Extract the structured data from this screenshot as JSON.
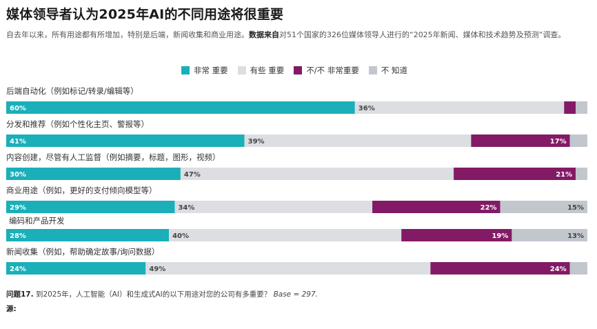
{
  "title": "媒体领导者认为2025年AI的不同用途将很重要",
  "subtitle": {
    "text1": "自去年以来，所有用途都有所增加，特别是后端，新闻收集和商业用途。",
    "bold": "数据来自",
    "text2": "对51个国家的326位媒体领导人进行的“2025年新闻、媒体和技术趋势及预测”调查。"
  },
  "footnote": {
    "q": "问题17.",
    "text": " 到2025年，人工智能（AI）和生成式AI的以下用途对您的公司有多重要？",
    "base": " Base = 297."
  },
  "source_label": "源:",
  "colors": {
    "very": "#1aafb9",
    "some": "#dcdee2",
    "not": "#831a66",
    "dontknow": "#c2c6cd"
  },
  "chart_data": {
    "type": "bar",
    "orientation": "horizontal-stacked-100",
    "legend_position": "top",
    "series": [
      {
        "name": "非常 重要",
        "values": [
          60,
          41,
          30,
          29,
          28,
          24
        ]
      },
      {
        "name": "有些 重要",
        "values": [
          36,
          39,
          47,
          34,
          40,
          49
        ]
      },
      {
        "name": "不/不 非常重要",
        "values": [
          2,
          17,
          21,
          22,
          19,
          24
        ]
      },
      {
        "name": "不 知道",
        "values": [
          2,
          3,
          2,
          15,
          13,
          3
        ]
      }
    ],
    "categories": [
      "后端自动化（例如标记/转录/编辑等）",
      "分发和推荐（例如个性化主页、警报等）",
      "内容创建，尽管有人工监督（例如摘要，标题，图形，视频）",
      "商业用途（例如，更好的支付倾向模型等）",
      "编码和产品开发",
      "新闻收集（例如，帮助确定故事/询问数据）"
    ],
    "labels": [
      [
        "60%",
        "36%",
        "",
        ""
      ],
      [
        "41%",
        "39%",
        "17%",
        ""
      ],
      [
        "30%",
        "47%",
        "21%",
        ""
      ],
      [
        "29%",
        "34%",
        "22%",
        "15%"
      ],
      [
        "28%",
        "40%",
        "19%",
        "13%"
      ],
      [
        "24%",
        "49%",
        "24%",
        ""
      ]
    ]
  }
}
